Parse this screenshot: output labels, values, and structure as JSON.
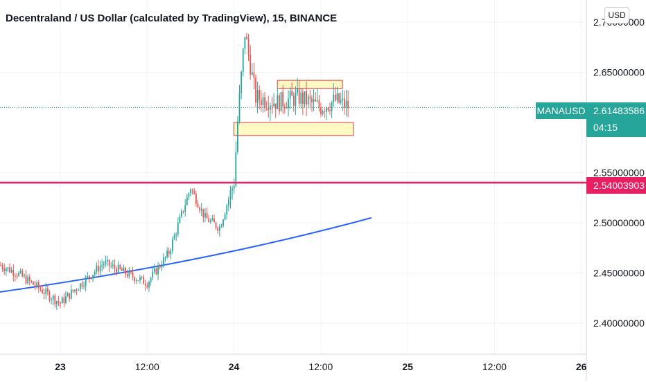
{
  "header": {
    "title": "Decentraland / US Dollar (calculated by TradingView), 15, BINANCE",
    "currency_button": "USD"
  },
  "price_scale": {
    "current_price": "2.61483586",
    "symbol": "MANAUSD",
    "countdown": "04:15",
    "horizontal_line_price": "2.54003903"
  },
  "colors": {
    "up": "#26a69a",
    "down": "#ef5350",
    "support_line": "#e91e63",
    "trend_line": "#2962ff",
    "box_border": "#e53935",
    "box_fill": "#fff9c4"
  },
  "chart_data": {
    "type": "candlestick",
    "title": "Decentraland / US Dollar (calculated by TradingView), 15, BINANCE",
    "y_ticks": [
      "2.40000000",
      "2.45000000",
      "2.50000000",
      "2.55000000",
      "2.65000000",
      "2.70000000"
    ],
    "x_ticks": [
      "23",
      "12:00",
      "24",
      "12:00",
      "25",
      "12:00",
      "26"
    ],
    "ylim": [
      2.37,
      2.72
    ],
    "grid": true,
    "horizontal_line": 2.54003903,
    "last_price": 2.61483586,
    "trend_line": {
      "from": [
        "22 00:00",
        2.4
      ],
      "to": [
        "24 19:00",
        2.505
      ]
    },
    "rectangles": [
      {
        "from": "24 06:00",
        "to": "24 15:00",
        "top": 2.642,
        "bottom": 2.634
      },
      {
        "from": "24 00:00",
        "to": "24 16:30",
        "top": 2.6,
        "bottom": 2.587
      }
    ],
    "candle_anchors": [
      [
        "22 12:00",
        2.47
      ],
      [
        "22 18:00",
        2.45
      ],
      [
        "23 00:00",
        2.42
      ],
      [
        "23 06:00",
        2.46
      ],
      [
        "23 12:00",
        2.44
      ],
      [
        "23 15:00",
        2.47
      ],
      [
        "23 18:00",
        2.535
      ],
      [
        "23 20:00",
        2.505
      ],
      [
        "23 22:00",
        2.495
      ],
      [
        "24 00:00",
        2.54
      ],
      [
        "24 00:30",
        2.6
      ],
      [
        "24 01:30",
        2.69
      ],
      [
        "24 03:00",
        2.625
      ],
      [
        "24 06:00",
        2.62
      ],
      [
        "24 09:00",
        2.625
      ],
      [
        "24 12:00",
        2.615
      ],
      [
        "24 14:00",
        2.622
      ],
      [
        "24 16:00",
        2.615
      ]
    ]
  }
}
